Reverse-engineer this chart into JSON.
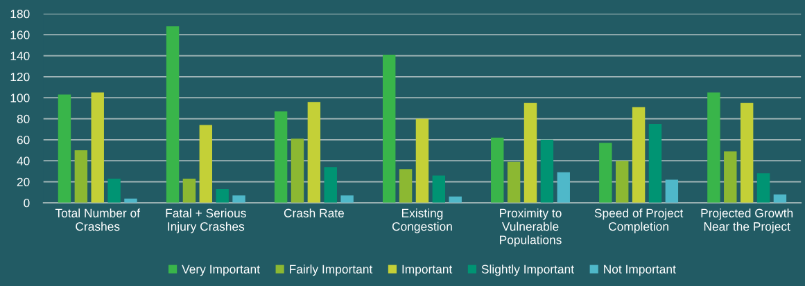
{
  "chart_data": {
    "type": "bar",
    "categories": [
      "Total Number of\nCrashes",
      "Fatal + Serious\nInjury Crashes",
      "Crash Rate",
      "Existing\nCongestion",
      "Proximity to\nVulnerable\nPopulations",
      "Speed of Project\nCompletion",
      "Projected Growth\nNear the Project"
    ],
    "series": [
      {
        "name": "Very Important",
        "color": "#39b54a",
        "values": [
          103,
          168,
          87,
          141,
          62,
          57,
          105
        ]
      },
      {
        "name": "Fairly Important",
        "color": "#8cb832",
        "values": [
          50,
          23,
          61,
          32,
          39,
          40,
          49
        ]
      },
      {
        "name": "Important",
        "color": "#c4d037",
        "values": [
          105,
          74,
          96,
          80,
          95,
          91,
          95
        ]
      },
      {
        "name": "Slightly Important",
        "color": "#009473",
        "values": [
          23,
          13,
          34,
          26,
          60,
          75,
          28
        ]
      },
      {
        "name": "Not Important",
        "color": "#4fb8c9",
        "values": [
          4,
          7,
          7,
          6,
          29,
          22,
          8
        ]
      }
    ],
    "ylim": [
      0,
      180
    ],
    "yticks": [
      0,
      20,
      40,
      60,
      80,
      100,
      120,
      140,
      160,
      180
    ],
    "grid": "y",
    "legend": "bottom"
  }
}
